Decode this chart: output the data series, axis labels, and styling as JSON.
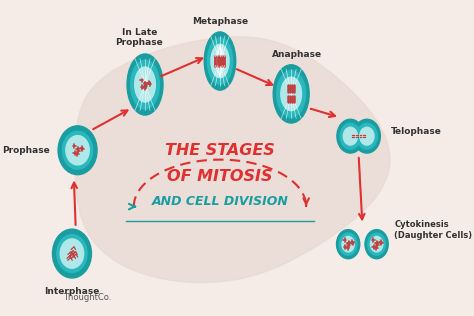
{
  "bg_color": "#f5ece8",
  "blob_color": "#e8d8d0",
  "teal_dark": "#1a9da0",
  "teal_mid": "#2ab8bc",
  "teal_light": "#7dd8db",
  "teal_inner": "#b0e8ea",
  "red_color": "#e03030",
  "pink_red": "#e03030",
  "title_line1": "THE STAGES",
  "title_line2": "OF MITOSIS",
  "title_line3": "AND CELL DIVISION",
  "title_color": "#e03030",
  "subtitle_color": "#1a9da0",
  "stages": [
    "Interphase",
    "Prophase",
    "In Late\nProphase",
    "Metaphase",
    "Anaphase",
    "Telophase",
    "Cytokinesis\n(Daughter Cells)"
  ],
  "watermark": "ThoughtCo.",
  "figsize": [
    4.74,
    3.16
  ],
  "dpi": 100
}
